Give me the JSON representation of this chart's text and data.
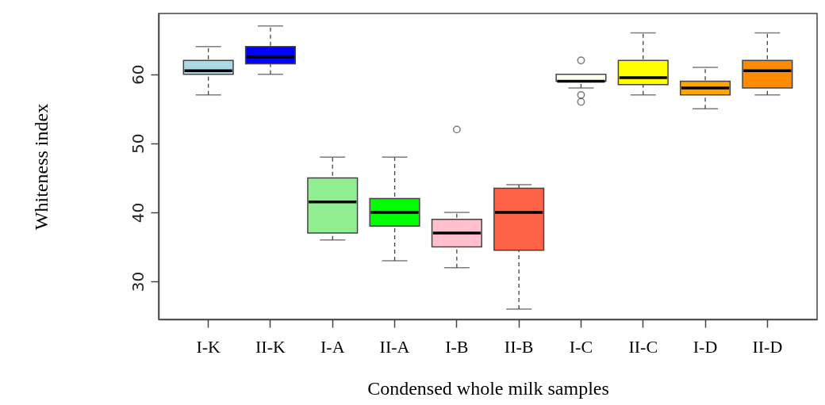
{
  "chart_data": {
    "type": "box",
    "xlabel": "Condensed whole milk samples",
    "ylabel": "Whiteness index",
    "categories": [
      "I-K",
      "II-K",
      "I-A",
      "II-A",
      "I-B",
      "II-B",
      "I-C",
      "II-C",
      "I-D",
      "II-D"
    ],
    "colors": [
      "#add8e6",
      "#0000ff",
      "#90ee90",
      "#00ff00",
      "#ffc0cb",
      "#ff6347",
      "#fffff0",
      "#ffff00",
      "#ffa500",
      "#ff8c00"
    ],
    "boxes": [
      {
        "low": 57,
        "q1": 60,
        "median": 60.5,
        "q3": 62,
        "high": 64
      },
      {
        "low": 60,
        "q1": 61.5,
        "median": 62.5,
        "q3": 64,
        "high": 67
      },
      {
        "low": 36,
        "q1": 37,
        "median": 41.5,
        "q3": 45,
        "high": 48
      },
      {
        "low": 33,
        "q1": 38,
        "median": 40,
        "q3": 42,
        "high": 48
      },
      {
        "low": 32,
        "q1": 35,
        "median": 37,
        "q3": 39,
        "high": 40,
        "outliers": [
          52
        ]
      },
      {
        "low": 26,
        "q1": 34.5,
        "median": 40,
        "q3": 43.5,
        "high": 44
      },
      {
        "low": 58,
        "q1": 59,
        "median": 59,
        "q3": 60,
        "high": 60,
        "outliers": [
          62,
          57,
          56
        ]
      },
      {
        "low": 57,
        "q1": 58.5,
        "median": 59.5,
        "q3": 62,
        "high": 66
      },
      {
        "low": 55,
        "q1": 57,
        "median": 58,
        "q3": 59,
        "high": 61
      },
      {
        "low": 57,
        "q1": 58,
        "median": 60.5,
        "q3": 62,
        "high": 66
      }
    ],
    "ylim": [
      24.5,
      68.8
    ],
    "yticks": [
      30,
      40,
      50,
      60
    ],
    "grid": false
  }
}
